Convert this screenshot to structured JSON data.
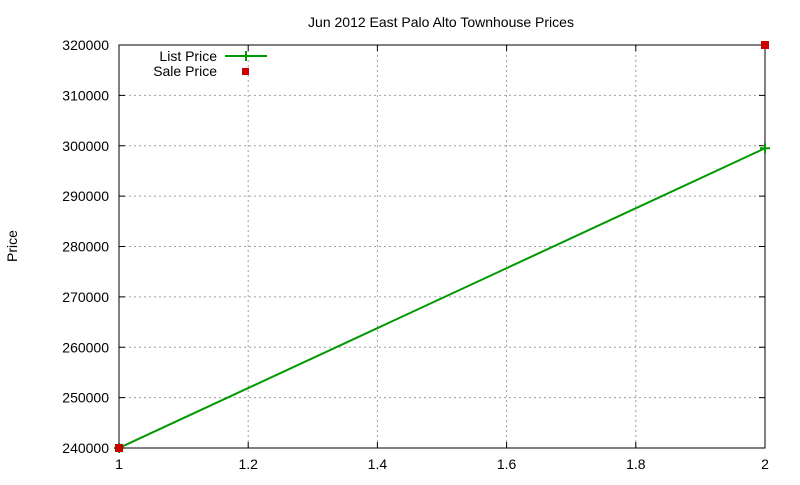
{
  "chart_data": {
    "type": "line",
    "title": "Jun 2012 East Palo Alto Townhouse Prices",
    "xlabel": "",
    "ylabel": "Price",
    "xlim": [
      1,
      2
    ],
    "ylim": [
      240000,
      320000
    ],
    "x_ticks": [
      "1",
      "1.2",
      "1.4",
      "1.6",
      "1.8",
      "2"
    ],
    "y_ticks": [
      "240000",
      "250000",
      "260000",
      "270000",
      "280000",
      "290000",
      "300000",
      "310000",
      "320000"
    ],
    "grid": true,
    "legend_position": "top-left",
    "series": [
      {
        "name": "List Price",
        "style": "line+cross",
        "color": "#009900",
        "x": [
          1,
          2
        ],
        "values": [
          240000,
          299500
        ]
      },
      {
        "name": "Sale Price",
        "style": "square-points",
        "color": "#cc0000",
        "x": [
          1,
          2
        ],
        "values": [
          240000,
          320000
        ]
      }
    ]
  }
}
